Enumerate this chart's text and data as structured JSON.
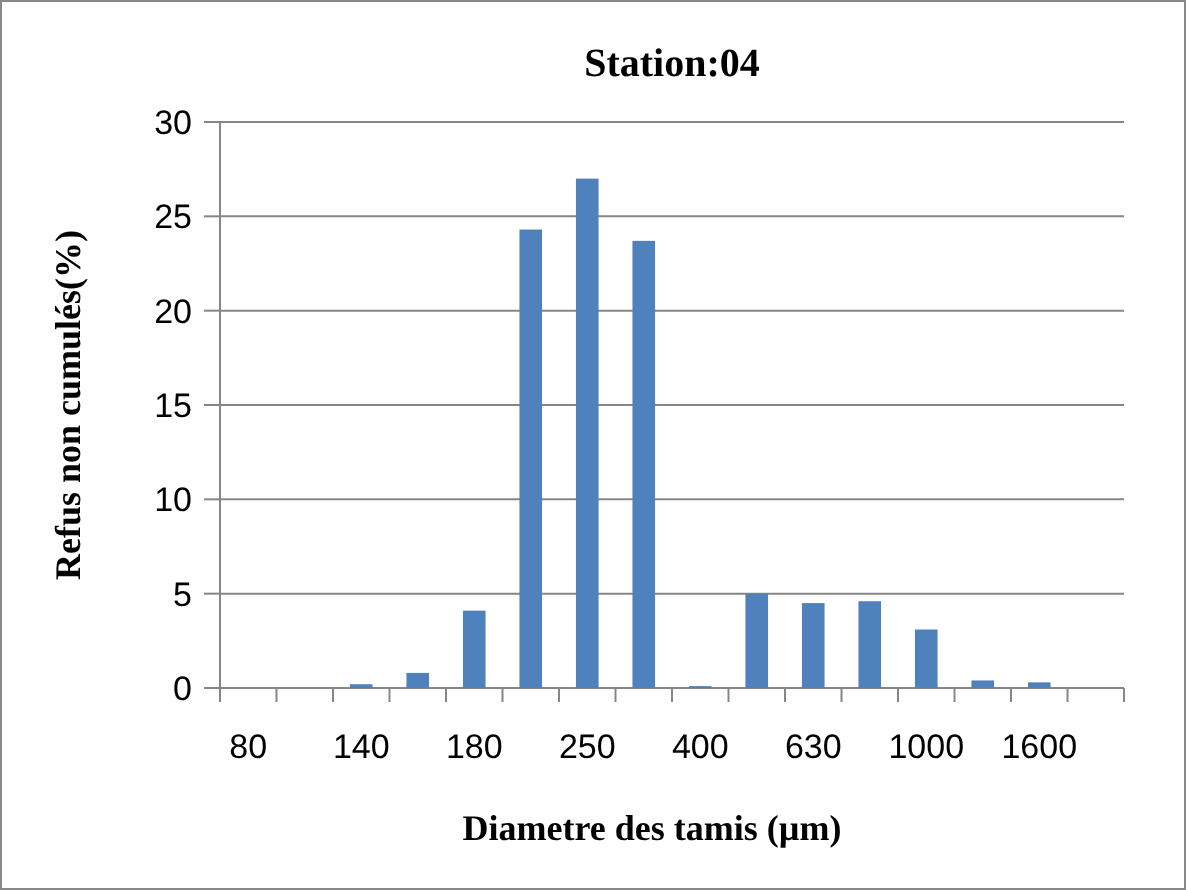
{
  "chart_data": {
    "type": "bar",
    "title": "Station:04",
    "xlabel": "Diametre des tamis (µm)",
    "ylabel": "Refus non cumulés(%)",
    "categories": [
      "80",
      null,
      "140",
      null,
      "180",
      null,
      "250",
      null,
      "400",
      null,
      "630",
      null,
      "1000",
      null,
      "1600",
      null
    ],
    "values": [
      0,
      0,
      0.2,
      0.8,
      4.1,
      24.3,
      27.0,
      23.7,
      0.1,
      5.0,
      4.5,
      4.6,
      3.1,
      0.4,
      0.3,
      0
    ],
    "color": "#4f81bd",
    "ylim": [
      0,
      30
    ],
    "yticks": [
      0,
      5,
      10,
      15,
      20,
      25,
      30
    ],
    "grid": "y"
  }
}
